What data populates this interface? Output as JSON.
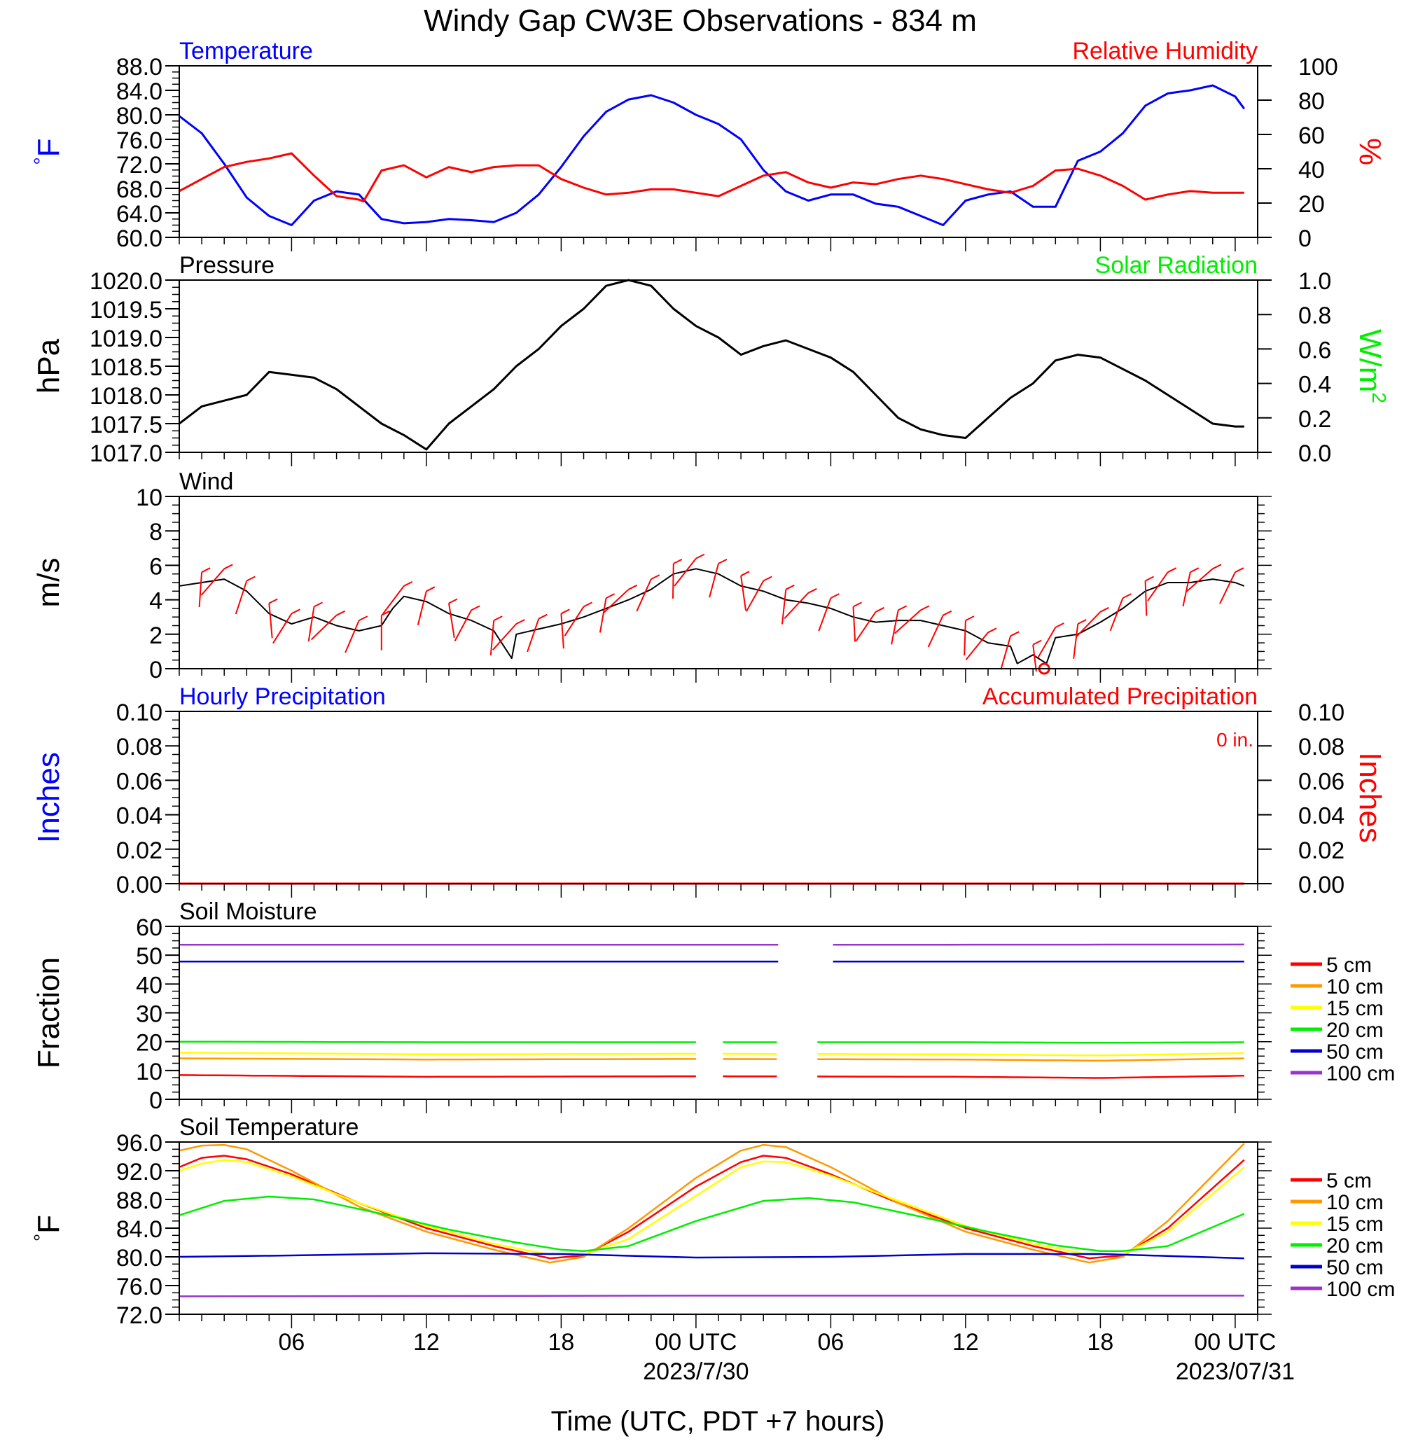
{
  "title": "Windy Gap CW3E Observations - 834 m",
  "xlabel": "Time (UTC, PDT +7 hours)",
  "x_ticks": [
    {
      "hour": 6,
      "label": "06",
      "date": ""
    },
    {
      "hour": 12,
      "label": "12",
      "date": ""
    },
    {
      "hour": 18,
      "label": "18",
      "date": ""
    },
    {
      "hour": 24,
      "label": "00 UTC",
      "date": "2023/7/30"
    },
    {
      "hour": 30,
      "label": "06",
      "date": ""
    },
    {
      "hour": 36,
      "label": "12",
      "date": ""
    },
    {
      "hour": 42,
      "label": "18",
      "date": ""
    },
    {
      "hour": 48,
      "label": "00 UTC",
      "date": "2023/07/31"
    }
  ],
  "colors": {
    "temperature": "#0000ff",
    "humidity": "#ff0000",
    "pressure": "#000000",
    "solar": "#00ee00",
    "wind": "#000000",
    "barbs": "#ff0000",
    "hourly_precip": "#0000ff",
    "accum_precip": "#ff0000"
  },
  "depth_colors": [
    "#ff0000",
    "#ff9900",
    "#ffff00",
    "#00ee00",
    "#0000cc",
    "#9933cc"
  ],
  "chart_data": [
    {
      "type": "line",
      "title_left": "Temperature",
      "title_right": "Relative Humidity",
      "ylabel_left": "°F",
      "ylabel_right": "%",
      "ylim_left": [
        60,
        88
      ],
      "ylim_right": [
        0,
        100
      ],
      "yticks_left": [
        "60.0",
        "64.0",
        "68.0",
        "72.0",
        "76.0",
        "80.0",
        "84.0",
        "88.0"
      ],
      "yticks_right": [
        "0",
        "20",
        "40",
        "60",
        "80",
        "100"
      ],
      "x_range_hours": [
        1,
        49
      ],
      "series": [
        {
          "axis": "left",
          "x": [
            1,
            2,
            3,
            4,
            5,
            6,
            7,
            8,
            9,
            10,
            11,
            12,
            13,
            14,
            15,
            16,
            17,
            18,
            19,
            20,
            21,
            22,
            23,
            24,
            25,
            26,
            27,
            28,
            29,
            30,
            31,
            32,
            33,
            34,
            35,
            36,
            37,
            38,
            39,
            40,
            41,
            42,
            43,
            44,
            45,
            46,
            47,
            48,
            48.4
          ],
          "y": [
            79.8,
            77.0,
            72.0,
            66.5,
            63.5,
            62.0,
            66.0,
            67.5,
            67.0,
            63.0,
            62.3,
            62.5,
            63.0,
            62.8,
            62.5,
            64.0,
            67.0,
            71.5,
            76.5,
            80.5,
            82.5,
            83.2,
            82.0,
            80.0,
            78.5,
            76.0,
            71.0,
            67.5,
            66.0,
            67.0,
            67.0,
            65.5,
            65.0,
            63.5,
            62.0,
            66.0,
            67.0,
            67.5,
            65.0,
            65.0,
            72.5,
            74.0,
            77.0,
            81.5,
            83.5,
            84.0,
            84.8,
            83.0,
            81.0
          ]
        },
        {
          "axis": "right",
          "x": [
            1,
            2,
            3,
            4,
            5,
            6,
            7,
            8,
            9,
            9.2,
            10,
            11,
            12,
            13,
            14,
            15,
            16,
            17,
            18,
            19,
            20,
            21,
            22,
            23,
            24,
            25,
            26,
            27,
            28,
            29,
            30,
            31,
            32,
            33,
            34,
            35,
            36,
            37,
            38,
            39,
            40,
            41,
            42,
            43,
            44,
            45,
            46,
            47,
            48,
            48.4
          ],
          "y": [
            27,
            34,
            41,
            44,
            46,
            49,
            36,
            24,
            22,
            21,
            39,
            42,
            35,
            41,
            38,
            41,
            42,
            42,
            34,
            29,
            25,
            26,
            28,
            28,
            26,
            24,
            30,
            36,
            38,
            32,
            29,
            32,
            31,
            34,
            36,
            34,
            31,
            28,
            26,
            30,
            39,
            40,
            36,
            30,
            22,
            25,
            27,
            26,
            26,
            26
          ]
        }
      ]
    },
    {
      "type": "line",
      "title_left": "Pressure",
      "title_right": "Solar Radiation",
      "ylabel_left": "hPa",
      "ylabel_right": "W/m",
      "ylabel_right_sup": "2",
      "ylim_left": [
        1017.0,
        1020.0
      ],
      "ylim_right": [
        0.0,
        1.0
      ],
      "yticks_left": [
        "1017.0",
        "1017.5",
        "1018.0",
        "1018.5",
        "1019.0",
        "1019.5",
        "1020.0"
      ],
      "yticks_right": [
        "0.0",
        "0.2",
        "0.4",
        "0.6",
        "0.8",
        "1.0"
      ],
      "x_range_hours": [
        1,
        49
      ],
      "series": [
        {
          "axis": "left",
          "x": [
            1,
            2,
            3,
            4,
            5,
            6,
            7,
            8,
            9,
            10,
            11,
            12,
            13,
            14,
            15,
            16,
            17,
            18,
            19,
            20,
            21,
            22,
            23,
            24,
            25,
            26,
            27,
            28,
            29,
            30,
            31,
            32,
            33,
            34,
            35,
            36,
            37,
            38,
            39,
            40,
            41,
            42,
            43,
            44,
            45,
            46,
            47,
            48,
            48.4
          ],
          "y": [
            1017.5,
            1017.8,
            1017.9,
            1018.0,
            1018.4,
            1018.35,
            1018.3,
            1018.1,
            1017.8,
            1017.5,
            1017.3,
            1017.05,
            1017.5,
            1017.8,
            1018.1,
            1018.5,
            1018.8,
            1019.2,
            1019.5,
            1019.9,
            1020.0,
            1019.9,
            1019.5,
            1019.2,
            1019.0,
            1018.7,
            1018.85,
            1018.95,
            1018.8,
            1018.65,
            1018.4,
            1018.0,
            1017.6,
            1017.4,
            1017.3,
            1017.25,
            1017.6,
            1017.95,
            1018.2,
            1018.6,
            1018.7,
            1018.65,
            1018.45,
            1018.25,
            1018.0,
            1017.75,
            1017.5,
            1017.45,
            1017.45
          ]
        }
      ]
    },
    {
      "type": "line",
      "title_left": "Wind",
      "ylabel_left": "m/s",
      "ylim_left": [
        0,
        10
      ],
      "yticks_left": [
        "0",
        "2",
        "4",
        "6",
        "8",
        "10"
      ],
      "x_range_hours": [
        1,
        49
      ],
      "series": [
        {
          "axis": "left",
          "x": [
            1,
            2,
            3,
            4,
            5,
            6,
            7,
            8,
            9,
            10,
            10.5,
            11,
            12,
            13,
            14,
            15,
            15.8,
            16,
            17,
            18,
            19,
            20,
            21,
            22,
            23,
            24,
            25,
            26,
            27,
            28,
            29,
            30,
            31,
            32,
            33,
            34,
            35,
            36,
            37,
            38,
            38.3,
            39,
            39.6,
            40,
            41,
            42,
            43,
            44,
            45,
            46,
            47,
            48,
            48.4
          ],
          "y": [
            4.8,
            5.0,
            5.2,
            4.5,
            3.2,
            2.6,
            3.0,
            2.5,
            2.2,
            2.5,
            3.5,
            4.2,
            3.9,
            3.2,
            2.8,
            2.2,
            0.6,
            2.0,
            2.3,
            2.6,
            3.0,
            3.5,
            4.0,
            4.6,
            5.5,
            5.8,
            5.5,
            4.8,
            4.5,
            4.0,
            3.8,
            3.5,
            3.0,
            2.7,
            2.8,
            2.8,
            2.5,
            2.2,
            1.5,
            1.3,
            0.3,
            0.8,
            0.3,
            1.8,
            2.0,
            2.7,
            3.5,
            4.5,
            5.0,
            5.0,
            5.2,
            5.0,
            4.8
          ]
        }
      ],
      "barbs": {
        "description": "wind barbs at hourly intervals",
        "marker_hour": 39.5,
        "marker": "calm circle"
      }
    },
    {
      "type": "line",
      "title_left": "Hourly Precipitation",
      "title_right": "Accumulated Precipitation",
      "annotation": "0 in.",
      "ylabel_left": "Inches",
      "ylabel_right": "Inches",
      "ylim_left": [
        0.0,
        0.1
      ],
      "ylim_right": [
        0.0,
        0.1
      ],
      "yticks_left": [
        "0.00",
        "0.02",
        "0.04",
        "0.06",
        "0.08",
        "0.10"
      ],
      "yticks_right": [
        "0.00",
        "0.02",
        "0.04",
        "0.06",
        "0.08",
        "0.10"
      ],
      "x_range_hours": [
        1,
        49
      ],
      "series": [
        {
          "axis": "left",
          "x": [
            1,
            48.4
          ],
          "y": [
            0,
            0
          ]
        },
        {
          "axis": "right",
          "x": [
            1,
            48.4
          ],
          "y": [
            0,
            0
          ]
        }
      ]
    },
    {
      "type": "line",
      "title_left": "Soil Moisture",
      "ylabel_left": "Fraction",
      "ylim_left": [
        0,
        60
      ],
      "yticks_left": [
        "0",
        "10",
        "20",
        "30",
        "40",
        "50",
        "60"
      ],
      "x_range_hours": [
        1,
        49
      ],
      "gaps_hours": [
        [
          24.1,
          25.1
        ],
        [
          28.0,
          29.1
        ]
      ],
      "legend": [
        "5 cm",
        "10 cm",
        "15 cm",
        "20 cm",
        "50 cm",
        "100 cm"
      ],
      "series": [
        {
          "name": "5 cm",
          "x": [
            1,
            12,
            24,
            36,
            42,
            48.4
          ],
          "y": [
            8.4,
            7.8,
            8.0,
            7.8,
            7.4,
            8.2
          ]
        },
        {
          "name": "10 cm",
          "x": [
            1,
            12,
            24,
            36,
            42,
            48.4
          ],
          "y": [
            14.2,
            13.8,
            14.0,
            13.8,
            13.4,
            14.2
          ]
        },
        {
          "name": "15 cm",
          "x": [
            1,
            12,
            24,
            36,
            42,
            48.4
          ],
          "y": [
            16.2,
            15.6,
            15.8,
            15.6,
            15.2,
            16.0
          ]
        },
        {
          "name": "20 cm",
          "x": [
            1,
            12,
            24,
            36,
            42,
            48.4
          ],
          "y": [
            20.0,
            19.8,
            19.8,
            19.8,
            19.6,
            19.8
          ]
        },
        {
          "name": "50 cm",
          "x": [
            1,
            24,
            48.4
          ],
          "y": [
            47.8,
            47.8,
            47.8
          ]
        },
        {
          "name": "100 cm",
          "x": [
            1,
            24,
            48.4
          ],
          "y": [
            53.6,
            53.6,
            53.7
          ]
        }
      ]
    },
    {
      "type": "line",
      "title_left": "Soil Temperature",
      "ylabel_left": "°F",
      "ylim_left": [
        72,
        96
      ],
      "yticks_left": [
        "72.0",
        "76.0",
        "80.0",
        "84.0",
        "88.0",
        "92.0",
        "96.0"
      ],
      "x_range_hours": [
        1,
        49
      ],
      "legend": [
        "5 cm",
        "10 cm",
        "15 cm",
        "20 cm",
        "50 cm",
        "100 cm"
      ],
      "series": [
        {
          "name": "5 cm",
          "x": [
            1,
            2,
            3,
            4,
            6,
            9,
            12,
            15,
            17.5,
            19,
            21,
            24,
            26,
            27,
            28,
            30,
            33,
            36,
            39,
            41.5,
            43,
            45,
            48.4
          ],
          "y": [
            92.5,
            93.8,
            94.1,
            93.6,
            91.5,
            87.5,
            84.0,
            81.5,
            79.8,
            80.2,
            83.5,
            89.8,
            93.2,
            94.1,
            93.8,
            91.5,
            87.5,
            84.0,
            81.5,
            79.8,
            80.2,
            84.0,
            93.5
          ]
        },
        {
          "name": "10 cm",
          "x": [
            1,
            2,
            3,
            4,
            6,
            9,
            12,
            15,
            17.5,
            19,
            21,
            24,
            26,
            27,
            28,
            30,
            33,
            36,
            39,
            41.5,
            43,
            45,
            48.4
          ],
          "y": [
            94.8,
            95.5,
            95.6,
            95.0,
            92.0,
            87.0,
            83.5,
            81.0,
            79.2,
            80.0,
            84.0,
            91.0,
            94.8,
            95.6,
            95.3,
            92.5,
            87.5,
            83.5,
            81.0,
            79.2,
            80.0,
            85.0,
            95.8
          ]
        },
        {
          "name": "15 cm",
          "x": [
            1,
            2,
            3,
            4,
            6,
            9,
            12,
            15,
            17.5,
            19,
            21,
            24,
            26,
            27,
            28,
            30,
            33,
            36,
            39,
            41.5,
            43,
            45,
            48.4
          ],
          "y": [
            92.0,
            93.0,
            93.5,
            93.2,
            91.2,
            87.5,
            84.3,
            81.8,
            80.3,
            80.3,
            82.5,
            88.5,
            92.5,
            93.3,
            93.2,
            91.3,
            87.8,
            84.3,
            81.8,
            80.3,
            80.3,
            83.5,
            92.5
          ]
        },
        {
          "name": "20 cm",
          "x": [
            1,
            3,
            5,
            7,
            10,
            13,
            16,
            18,
            19,
            21,
            24,
            27,
            29,
            31,
            34,
            37,
            40,
            42,
            43,
            45,
            48.4
          ],
          "y": [
            85.8,
            87.8,
            88.4,
            88.0,
            86.0,
            83.8,
            82.0,
            81.0,
            80.8,
            81.5,
            85.0,
            87.8,
            88.2,
            87.6,
            85.6,
            83.5,
            81.6,
            80.8,
            80.8,
            81.5,
            86.0
          ]
        },
        {
          "name": "50 cm",
          "x": [
            1,
            6,
            12,
            18,
            24,
            30,
            36,
            42,
            48.4
          ],
          "y": [
            80.0,
            80.2,
            80.5,
            80.4,
            79.9,
            80.0,
            80.4,
            80.4,
            79.8
          ]
        },
        {
          "name": "100 cm",
          "x": [
            1,
            24,
            48.4
          ],
          "y": [
            74.5,
            74.6,
            74.6
          ]
        }
      ]
    }
  ]
}
